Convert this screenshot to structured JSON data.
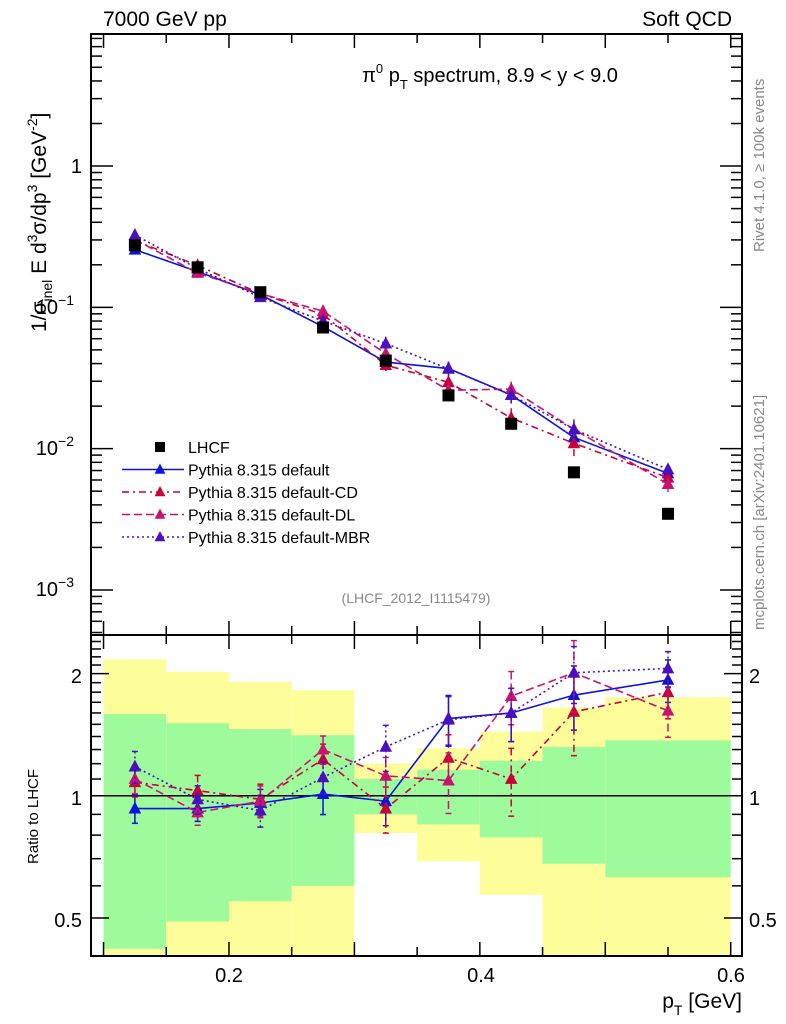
{
  "header": {
    "left": "7000 GeV pp",
    "right": "Soft QCD"
  },
  "side_labels": {
    "rivet": "Rivet 4.1.0, ≥ 100k events",
    "mcplots": "mcplots.cern.ch [arXiv:2401.10621]"
  },
  "colors": {
    "LHCF": "#000000",
    "default": "#0a14dc",
    "CD": "#c8003c",
    "DL": "#c8146e",
    "MBR": "#4a0fbe",
    "band_outer": "#fdfd99",
    "band_inner": "#9dfb9c"
  },
  "chart_data": [
    {
      "type": "line",
      "panel": "main",
      "title": "π⁰ p_T spectrum, 8.9 < y < 9.0",
      "title_parts": {
        "pi": "π",
        "sup0": "0",
        "p": " p",
        "subT": "T",
        "rest": " spectrum, 8.9 < y < 9.0"
      },
      "xlabel": "p_T [GeV]",
      "ylabel": "1/σ_inel E d³σ/dp³ [GeV⁻²]",
      "ylabel_parts": {
        "a": "1/σ",
        "sub_inel": "inel",
        "b": " E d",
        "sup3a": "3",
        "c": "σ/dp",
        "sup3b": "3",
        "d": " [GeV",
        "sup_m2": "-2",
        "e": "]"
      },
      "xscale": "linear",
      "yscale": "log",
      "xlim": [
        0.09,
        0.609
      ],
      "ylim": [
        0.00048,
        8.6
      ],
      "y_ticks": [
        {
          "value": 1,
          "label": "1"
        },
        {
          "value": 0.1,
          "label": "10",
          "exp": "−1"
        },
        {
          "value": 0.01,
          "label": "10",
          "exp": "−2"
        },
        {
          "value": 0.001,
          "label": "10",
          "exp": "−3"
        }
      ],
      "x_bins": [
        [
          0.1,
          0.15
        ],
        [
          0.15,
          0.2
        ],
        [
          0.2,
          0.25
        ],
        [
          0.25,
          0.3
        ],
        [
          0.3,
          0.35
        ],
        [
          0.35,
          0.4
        ],
        [
          0.4,
          0.45
        ],
        [
          0.45,
          0.5
        ],
        [
          0.5,
          0.6
        ]
      ],
      "x": [
        0.125,
        0.175,
        0.225,
        0.275,
        0.325,
        0.375,
        0.425,
        0.475,
        0.55
      ],
      "reference": {
        "name": "LHCF",
        "values": [
          0.275,
          0.192,
          0.128,
          0.072,
          0.042,
          0.0238,
          0.015,
          0.0068,
          0.00346
        ]
      },
      "series": [
        {
          "key": "default",
          "name": "Pythia 8.315 default",
          "style": "solid",
          "values": [
            0.256,
            0.179,
            0.123,
            0.073,
            0.041,
            0.0369,
            0.024,
            0.012,
            0.00668
          ],
          "rel_err": [
            0.07,
            0.06,
            0.07,
            0.1,
            0.12,
            0.12,
            0.13,
            0.15,
            0.1
          ]
        },
        {
          "key": "CD",
          "name": "Pythia 8.315 default-CD",
          "style": "dashdot",
          "values": [
            0.297,
            0.198,
            0.125,
            0.089,
            0.039,
            0.0295,
            0.0165,
            0.0109,
            0.00623
          ],
          "rel_err": [
            0.07,
            0.08,
            0.08,
            0.08,
            0.12,
            0.12,
            0.17,
            0.2,
            0.12
          ]
        },
        {
          "key": "DL",
          "name": "Pythia 8.315 default-DL",
          "style": "dashed",
          "values": [
            0.302,
            0.175,
            0.125,
            0.094,
            0.047,
            0.0259,
            0.0264,
            0.0137,
            0.00561
          ],
          "rel_err": [
            0.07,
            0.06,
            0.08,
            0.07,
            0.1,
            0.15,
            0.13,
            0.18,
            0.12
          ]
        },
        {
          "key": "MBR",
          "name": "Pythia 8.315 default-MBR",
          "style": "dotted",
          "values": [
            0.325,
            0.188,
            0.118,
            0.08,
            0.0554,
            0.0367,
            0.024,
            0.0137,
            0.00713
          ],
          "rel_err": [
            0.08,
            0.07,
            0.08,
            0.08,
            0.12,
            0.12,
            0.13,
            0.14,
            0.09
          ]
        }
      ],
      "legend": {
        "placement": "bottom-left",
        "entries": [
          {
            "key": "LHCF",
            "label": "LHCF"
          },
          {
            "key": "default",
            "label": "Pythia 8.315 default"
          },
          {
            "key": "CD",
            "label": "Pythia 8.315 default-CD"
          },
          {
            "key": "DL",
            "label": "Pythia 8.315 default-DL"
          },
          {
            "key": "MBR",
            "label": "Pythia 8.315 default-MBR"
          }
        ]
      },
      "annotation": "(LHCF_2012_I1115479)"
    },
    {
      "type": "line",
      "panel": "ratio",
      "ylabel": "Ratio to LHCF",
      "xlabel": "p_T [GeV]",
      "xlabel_parts": {
        "p": "p",
        "subT": "T",
        "rest": " [GeV]"
      },
      "xscale": "linear",
      "yscale": "log",
      "xlim": [
        0.09,
        0.609
      ],
      "ylim": [
        0.403,
        2.49
      ],
      "x_ticks": [
        {
          "value": 0.2,
          "label": "0.2"
        },
        {
          "value": 0.4,
          "label": "0.4"
        },
        {
          "value": 0.6,
          "label": "0.6"
        }
      ],
      "y_ticks": [
        {
          "value": 0.5,
          "label": "0.5"
        },
        {
          "value": 1,
          "label": "1"
        },
        {
          "value": 2,
          "label": "2"
        }
      ],
      "bands": {
        "x_bins": [
          [
            0.1,
            0.15
          ],
          [
            0.15,
            0.2
          ],
          [
            0.2,
            0.25
          ],
          [
            0.25,
            0.3
          ],
          [
            0.3,
            0.35
          ],
          [
            0.35,
            0.4
          ],
          [
            0.4,
            0.45
          ],
          [
            0.45,
            0.5
          ],
          [
            0.5,
            0.6
          ]
        ],
        "outer_upper": [
          2.17,
          2.02,
          1.91,
          1.82,
          1.2,
          1.31,
          1.44,
          1.65,
          1.75
        ],
        "outer_lower": [
          0.35,
          0.35,
          0.35,
          0.35,
          0.81,
          0.69,
          0.57,
          0.35,
          0.35
        ],
        "inner_upper": [
          1.59,
          1.51,
          1.46,
          1.41,
          1.1,
          1.16,
          1.22,
          1.32,
          1.37
        ],
        "inner_lower": [
          0.42,
          0.49,
          0.55,
          0.6,
          0.9,
          0.85,
          0.79,
          0.68,
          0.63
        ]
      },
      "x": [
        0.125,
        0.175,
        0.225,
        0.275,
        0.325,
        0.375,
        0.425,
        0.475,
        0.55
      ],
      "series": [
        {
          "key": "default",
          "name": "Pythia 8.315 default",
          "values": [
            0.93,
            0.93,
            0.96,
            1.01,
            0.97,
            1.55,
            1.6,
            1.77,
            1.93
          ],
          "rel_err": [
            0.08,
            0.07,
            0.08,
            0.11,
            0.13,
            0.14,
            0.15,
            0.18,
            0.12
          ]
        },
        {
          "key": "CD",
          "name": "Pythia 8.315 default-CD",
          "values": [
            1.08,
            1.03,
            0.98,
            1.23,
            0.93,
            1.24,
            1.1,
            1.61,
            1.8
          ],
          "rel_err": [
            0.08,
            0.09,
            0.09,
            0.09,
            0.13,
            0.14,
            0.19,
            0.22,
            0.14
          ]
        },
        {
          "key": "DL",
          "name": "Pythia 8.315 default-DL",
          "values": [
            1.1,
            0.91,
            0.97,
            1.3,
            1.12,
            1.09,
            1.76,
            2.01,
            1.62
          ],
          "rel_err": [
            0.08,
            0.07,
            0.09,
            0.08,
            0.11,
            0.17,
            0.15,
            0.2,
            0.14
          ]
        },
        {
          "key": "MBR",
          "name": "Pythia 8.315 default-MBR",
          "values": [
            1.18,
            0.98,
            0.92,
            1.11,
            1.32,
            1.54,
            1.6,
            2.01,
            2.06
          ],
          "rel_err": [
            0.09,
            0.08,
            0.09,
            0.09,
            0.13,
            0.14,
            0.15,
            0.16,
            0.1
          ]
        }
      ]
    }
  ]
}
